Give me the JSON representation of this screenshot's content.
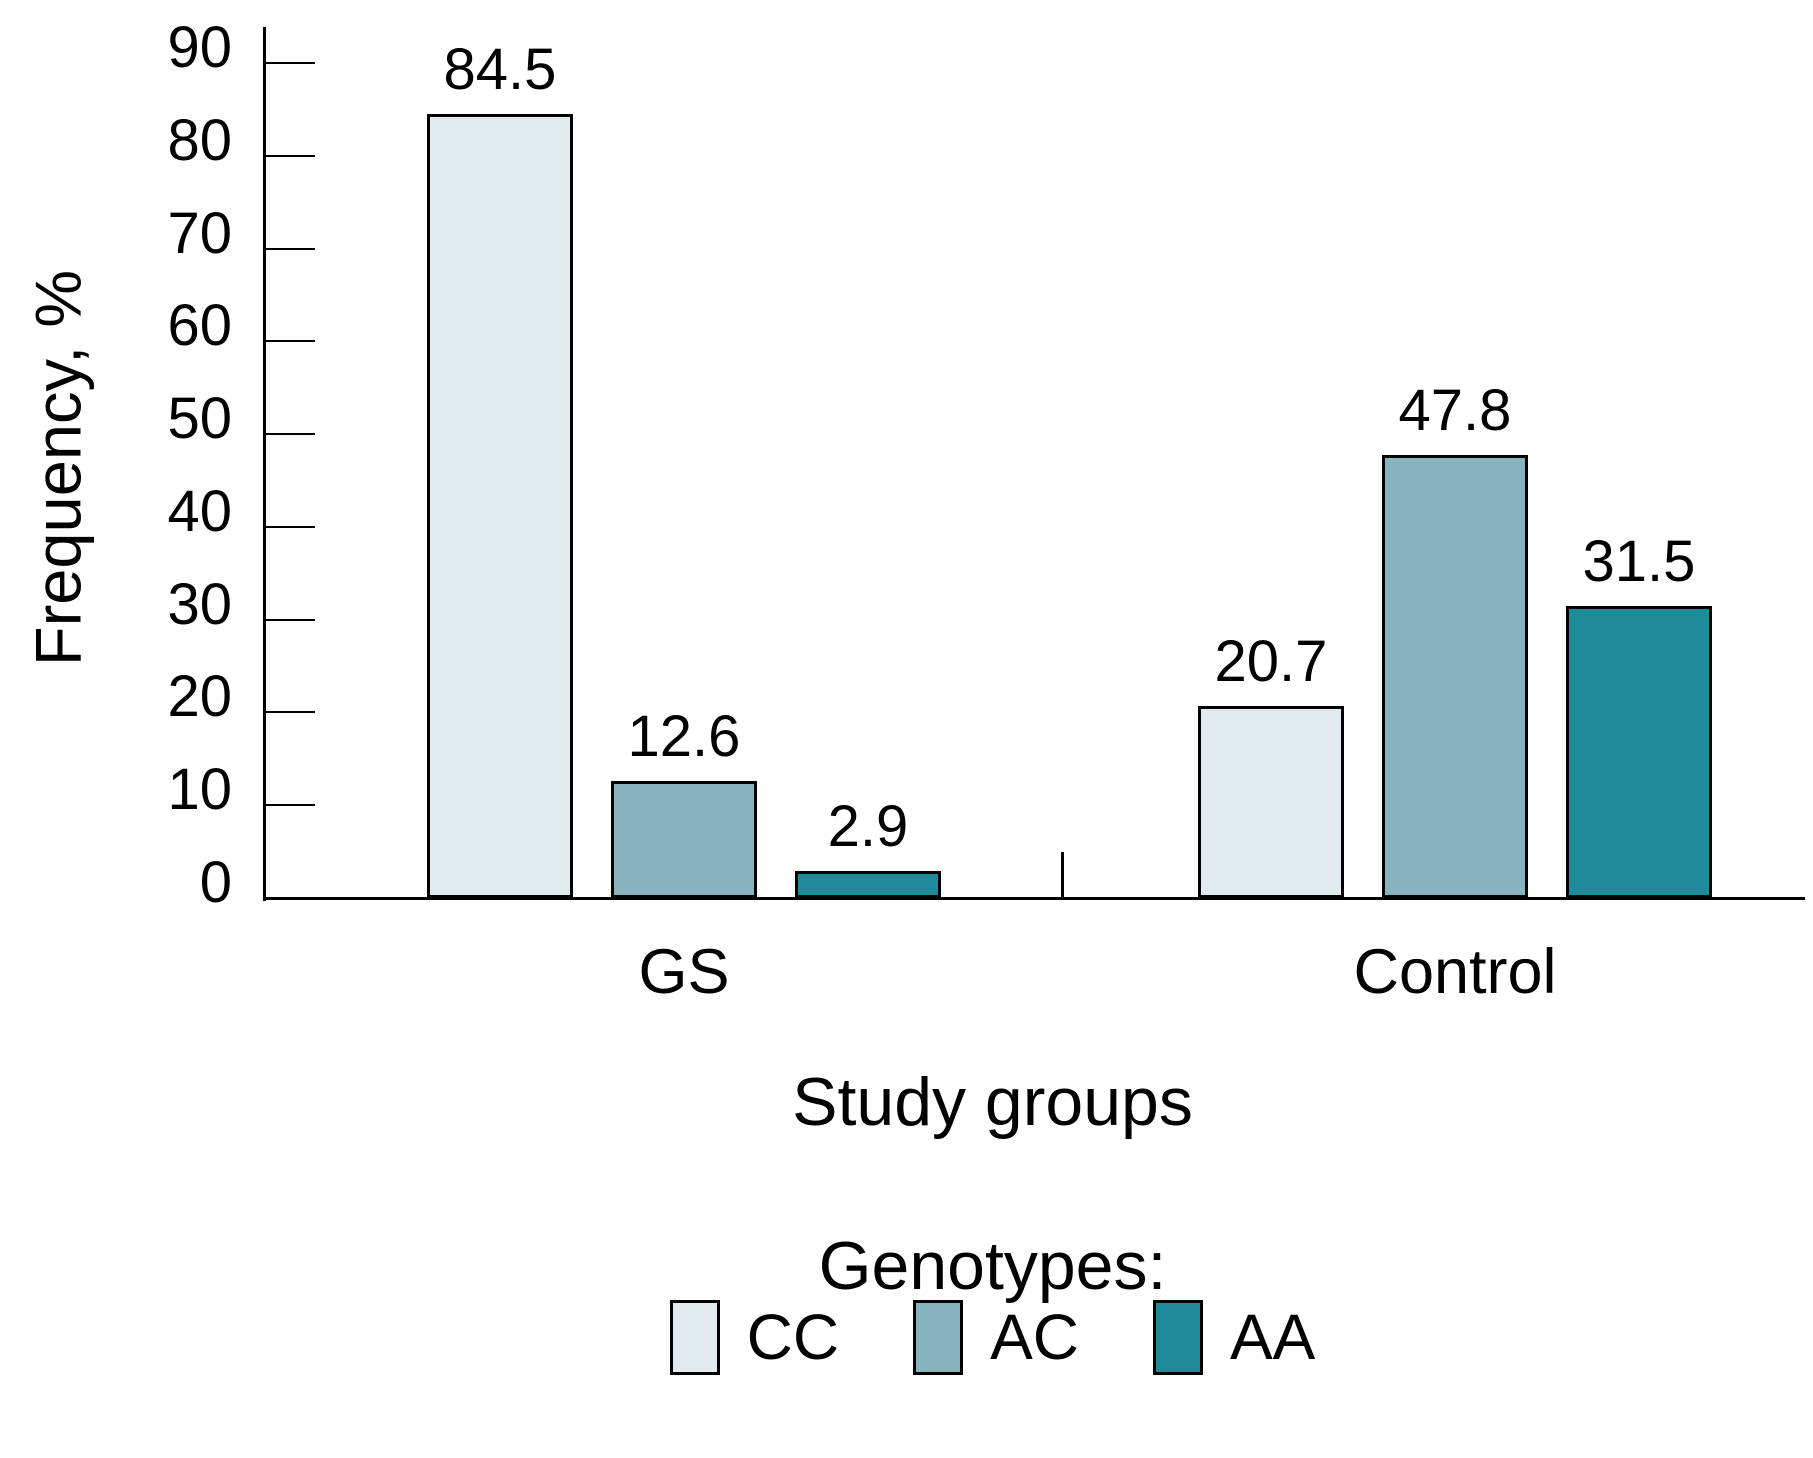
{
  "chart_data": {
    "type": "bar",
    "title": "",
    "ylabel": "Frequency, %",
    "xlabel": "Study groups",
    "legend_title": "Genotypes:",
    "legend_position": "bottom",
    "grid": false,
    "ylim": [
      0,
      90
    ],
    "yticks": [
      0,
      10,
      20,
      30,
      40,
      50,
      60,
      70,
      80,
      90
    ],
    "categories": [
      "GS",
      "Control"
    ],
    "series": [
      {
        "name": "CC",
        "color": "#e1eaed",
        "values": [
          84.5,
          20.7
        ]
      },
      {
        "name": "AC",
        "color": "#86b3be",
        "values": [
          12.6,
          47.8
        ]
      },
      {
        "name": "AA",
        "color": "#1f8a99",
        "values": [
          2.9,
          31.5
        ]
      }
    ]
  },
  "colors": {
    "background": "#ffffff",
    "axis": "#000000",
    "text": "#000000",
    "bar_border": "#000000",
    "cc_fill": "#e1eaed",
    "ac_fill": "#86b3be",
    "aa_fill": "#1f8a99"
  }
}
